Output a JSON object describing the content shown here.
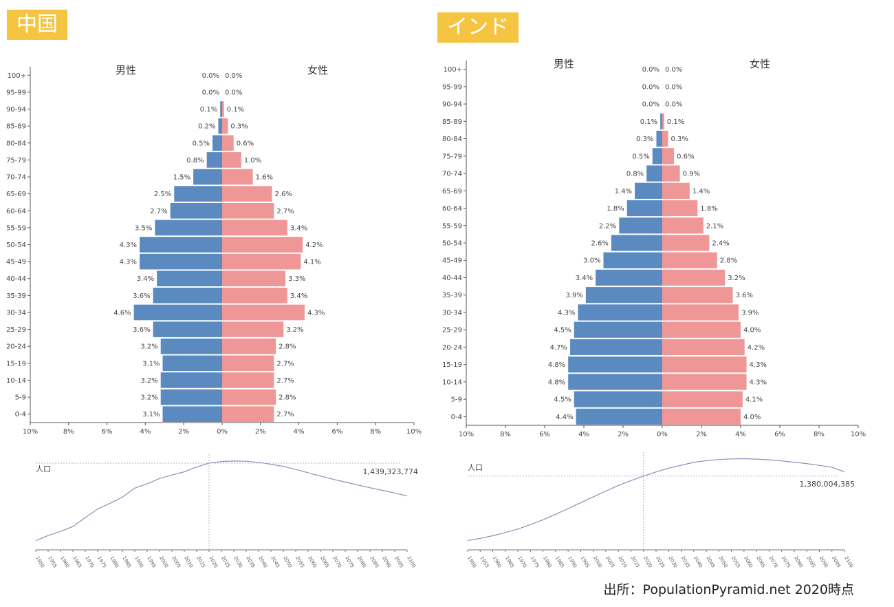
{
  "colors": {
    "male": "#5b8ac0",
    "female": "#ef9797",
    "badge": "#f5c542",
    "curve": "#8a8fb8"
  },
  "charts": [
    {
      "country": "中国"
    },
    {
      "country": "インド"
    }
  ],
  "source": "出所：PopulationPyramid.net 2020時点",
  "chart_data": [
    {
      "type": "bar",
      "title": "中国",
      "series": [
        {
          "name": "男性",
          "values": [
            0.0,
            0.0,
            0.1,
            0.2,
            0.5,
            0.8,
            1.5,
            2.5,
            2.7,
            3.5,
            4.3,
            4.3,
            3.4,
            3.6,
            4.6,
            3.6,
            3.2,
            3.1,
            3.2,
            3.2,
            3.1
          ]
        },
        {
          "name": "女性",
          "values": [
            0.0,
            0.0,
            0.1,
            0.3,
            0.6,
            1.0,
            1.6,
            2.6,
            2.7,
            3.4,
            4.2,
            4.1,
            3.3,
            3.4,
            4.3,
            3.2,
            2.8,
            2.7,
            2.7,
            2.8,
            2.7
          ]
        }
      ],
      "categories": [
        "100+",
        "95-99",
        "90-94",
        "85-89",
        "80-84",
        "75-79",
        "70-74",
        "65-69",
        "60-64",
        "55-59",
        "50-54",
        "45-49",
        "40-44",
        "35-39",
        "30-34",
        "25-29",
        "20-24",
        "15-19",
        "10-14",
        "5-9",
        "0-4"
      ],
      "xticks": [
        "10%",
        "8%",
        "6%",
        "4%",
        "2%",
        "0%",
        "2%",
        "4%",
        "6%",
        "8%",
        "10%"
      ],
      "xlim": [
        -10,
        10
      ],
      "population": {
        "label": "人口",
        "value_text": "1,439,323,774",
        "years": [
          1950,
          1955,
          1960,
          1965,
          1970,
          1975,
          1980,
          1985,
          1990,
          1995,
          2000,
          2005,
          2010,
          2015,
          2020,
          2025,
          2030,
          2035,
          2040,
          2045,
          2050,
          2055,
          2060,
          2065,
          2070,
          2075,
          2080,
          2085,
          2090,
          2095,
          2100
        ],
        "values": [
          554,
          612,
          660,
          715,
          818,
          916,
          981,
          1051,
          1154,
          1204,
          1264,
          1304,
          1341,
          1397,
          1439,
          1458,
          1464,
          1461,
          1449,
          1427,
          1402,
          1368,
          1330,
          1292,
          1256,
          1223,
          1190,
          1159,
          1129,
          1098,
          1065
        ],
        "marker_year": 2020,
        "year_labels": [
          "1950",
          "1955",
          "1960",
          "1965",
          "1970",
          "1975",
          "1980",
          "1985",
          "1990",
          "1995",
          "2000",
          "2005",
          "2010",
          "2015",
          "2020",
          "2025",
          "2030",
          "2035",
          "2040",
          "2045",
          "2050",
          "2055",
          "2060",
          "2065",
          "2070",
          "2075",
          "2080",
          "2085",
          "2090",
          "2095",
          "2100"
        ]
      }
    },
    {
      "type": "bar",
      "title": "インド",
      "series": [
        {
          "name": "男性",
          "values": [
            0.0,
            0.0,
            0.0,
            0.1,
            0.3,
            0.5,
            0.8,
            1.4,
            1.8,
            2.2,
            2.6,
            3.0,
            3.4,
            3.9,
            4.3,
            4.5,
            4.7,
            4.8,
            4.8,
            4.5,
            4.4
          ]
        },
        {
          "name": "女性",
          "values": [
            0.0,
            0.0,
            0.0,
            0.1,
            0.3,
            0.6,
            0.9,
            1.4,
            1.8,
            2.1,
            2.4,
            2.8,
            3.2,
            3.6,
            3.9,
            4.0,
            4.2,
            4.3,
            4.3,
            4.1,
            4.0
          ]
        }
      ],
      "categories": [
        "100+",
        "95-99",
        "90-94",
        "85-89",
        "80-84",
        "75-79",
        "70-74",
        "65-69",
        "60-64",
        "55-59",
        "50-54",
        "45-49",
        "40-44",
        "35-39",
        "30-34",
        "25-29",
        "20-24",
        "15-19",
        "10-14",
        "5-9",
        "0-4"
      ],
      "xticks": [
        "10%",
        "8%",
        "6%",
        "4%",
        "2%",
        "0%",
        "2%",
        "4%",
        "6%",
        "8%",
        "10%"
      ],
      "xlim": [
        -10,
        10
      ],
      "population": {
        "label": "人口",
        "value_text": "1,380,004,385",
        "years": [
          1950,
          1955,
          1960,
          1965,
          1970,
          1975,
          1980,
          1985,
          1990,
          1995,
          2000,
          2005,
          2010,
          2015,
          2020,
          2025,
          2030,
          2035,
          2040,
          2045,
          2050,
          2055,
          2060,
          2065,
          2070,
          2075,
          2080,
          2085,
          2090,
          2095,
          2100
        ],
        "values": [
          376,
          409,
          450,
          500,
          555,
          623,
          699,
          784,
          873,
          964,
          1057,
          1147,
          1234,
          1310,
          1380,
          1445,
          1504,
          1550,
          1593,
          1620,
          1639,
          1648,
          1651,
          1645,
          1634,
          1617,
          1597,
          1574,
          1547,
          1517,
          1447
        ],
        "marker_year": 2020,
        "year_labels": [
          "1950",
          "1955",
          "1960",
          "1965",
          "1970",
          "1975",
          "1980",
          "1985",
          "1990",
          "1995",
          "2000",
          "2005",
          "2010",
          "2015",
          "2020",
          "2025",
          "2030",
          "2035",
          "2040",
          "2045",
          "2050",
          "2055",
          "2060",
          "2065",
          "2070",
          "2075",
          "2080",
          "2085",
          "2090",
          "2095",
          "2100"
        ]
      }
    }
  ]
}
